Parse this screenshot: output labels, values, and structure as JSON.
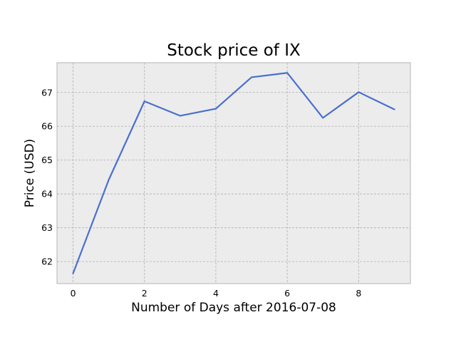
{
  "chart_data": {
    "type": "line",
    "title": "Stock price of IX",
    "xlabel": "Number of Days after 2016-07-08",
    "ylabel": "Price (USD)",
    "xlim": [
      -0.45,
      9.45
    ],
    "ylim": [
      61.35,
      67.88
    ],
    "xticks": [
      0,
      2,
      4,
      6,
      8
    ],
    "yticks": [
      62,
      63,
      64,
      65,
      66,
      67
    ],
    "grid": true,
    "series": [
      {
        "x": [
          0,
          1,
          2,
          3,
          4,
          5,
          6,
          7,
          8,
          9
        ],
        "values": [
          61.65,
          64.42,
          66.74,
          66.31,
          66.52,
          67.45,
          67.58,
          66.25,
          67.01,
          66.5
        ],
        "color": "#4a6fd0"
      }
    ],
    "colors": {
      "plot_background": "#ececec",
      "frame": "#b3b3b3",
      "grid": "#b0b0b0"
    }
  }
}
